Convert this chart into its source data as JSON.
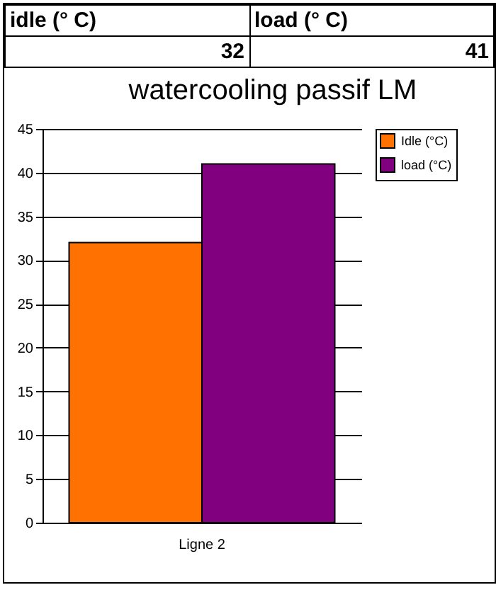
{
  "chart_data": [
    {
      "type": "other",
      "annotations": [
        "idle (° C)",
        "load (° C)",
        "32",
        "41"
      ]
    },
    {
      "type": "bar",
      "title": "watercooling passif LM",
      "categories": [
        "Ligne 2"
      ],
      "series": [
        {
          "name": "Idle (°C)",
          "color": "#ff7100",
          "values": [
            32
          ]
        },
        {
          "name": "load (°C)",
          "color": "#800080",
          "values": [
            41
          ]
        }
      ],
      "ylim": [
        0,
        45
      ],
      "yticks": [
        0,
        5,
        10,
        15,
        20,
        25,
        30,
        35,
        40,
        45
      ],
      "grid": "y",
      "legend": "right"
    }
  ]
}
